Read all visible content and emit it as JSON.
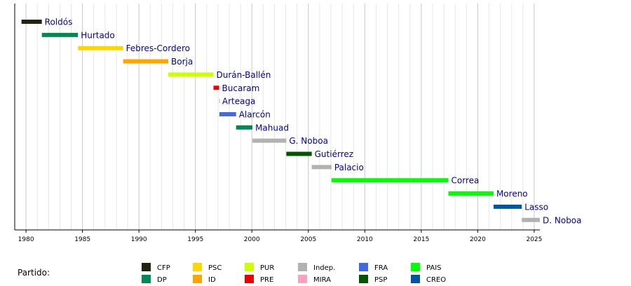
{
  "chart_data": {
    "type": "timeline",
    "title": "",
    "xlabel": "",
    "ylabel": "",
    "xlim": [
      1979,
      2025.5
    ],
    "grid": true,
    "x_ticks": [
      "1980",
      "1985",
      "1990",
      "1995",
      "2000",
      "2005",
      "2010",
      "2015",
      "2020",
      "2025"
    ],
    "series": [
      {
        "name": "Roldós",
        "start": 1979.6,
        "end": 1981.4,
        "party": "CFP"
      },
      {
        "name": "Hurtado",
        "start": 1981.4,
        "end": 1984.6,
        "party": "DP"
      },
      {
        "name": "Febres-Cordero",
        "start": 1984.6,
        "end": 1988.6,
        "party": "PSC"
      },
      {
        "name": "Borja",
        "start": 1988.6,
        "end": 1992.6,
        "party": "ID"
      },
      {
        "name": "Durán-Ballén",
        "start": 1992.6,
        "end": 1996.6,
        "party": "PUR"
      },
      {
        "name": "Bucaram",
        "start": 1996.6,
        "end": 1997.1,
        "party": "PRE"
      },
      {
        "name": "Arteaga",
        "start": 1997.1,
        "end": 1997.12,
        "party": "Indep."
      },
      {
        "name": "Alarcón",
        "start": 1997.12,
        "end": 1998.6,
        "party": "FRA"
      },
      {
        "name": "Mahuad",
        "start": 1998.6,
        "end": 2000.05,
        "party": "DP"
      },
      {
        "name": "G. Noboa",
        "start": 2000.05,
        "end": 2003.05,
        "party": "Indep."
      },
      {
        "name": "Gutiérrez",
        "start": 2003.05,
        "end": 2005.3,
        "party": "PSP"
      },
      {
        "name": "Palacio",
        "start": 2005.3,
        "end": 2007.05,
        "party": "Indep."
      },
      {
        "name": "Correa",
        "start": 2007.05,
        "end": 2017.4,
        "party": "PAIS"
      },
      {
        "name": "Moreno",
        "start": 2017.4,
        "end": 2021.4,
        "party": "PAIS"
      },
      {
        "name": "Lasso",
        "start": 2021.4,
        "end": 2023.9,
        "party": "CREO"
      },
      {
        "name": "D. Noboa",
        "start": 2023.9,
        "end": 2025.5,
        "party": "Indep."
      }
    ],
    "legend": {
      "title": "Partido:",
      "placement": "bottom",
      "entries": [
        {
          "party": "CFP",
          "color": "#222211"
        },
        {
          "party": "DP",
          "color": "#008855"
        },
        {
          "party": "PSC",
          "color": "#ffd700"
        },
        {
          "party": "ID",
          "color": "#ffa500"
        },
        {
          "party": "PUR",
          "color": "#ccff00"
        },
        {
          "party": "PRE",
          "color": "#ee0000"
        },
        {
          "party": "Indep.",
          "color": "#b2b2b2"
        },
        {
          "party": "MIRA",
          "color": "#ffa0c0"
        },
        {
          "party": "FRA",
          "color": "#4169e1"
        },
        {
          "party": "PSP",
          "color": "#005500"
        },
        {
          "party": "PAIS",
          "color": "#00ff00"
        },
        {
          "party": "CREO",
          "color": "#0055a0"
        }
      ]
    }
  }
}
